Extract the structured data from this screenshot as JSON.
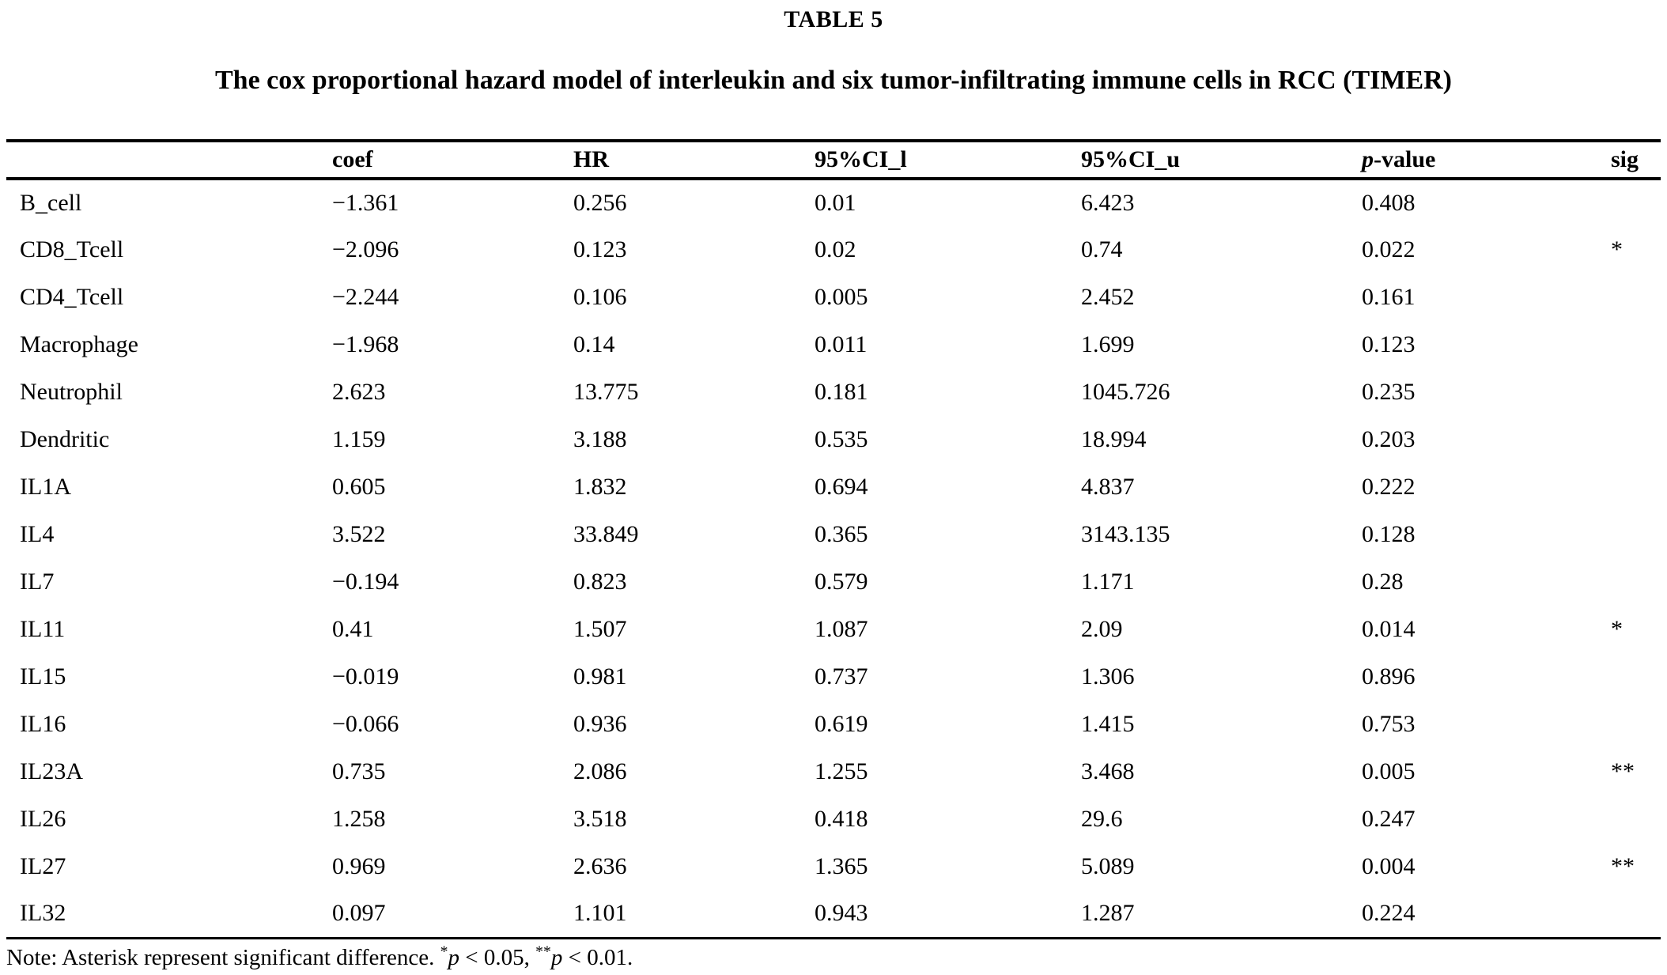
{
  "page": {
    "table_label": "TABLE 5",
    "title": "The cox proportional hazard model of interleukin and six tumor-infiltrating immune cells in RCC (TIMER)"
  },
  "table": {
    "headers": {
      "row_label": "",
      "coef": "coef",
      "hr": "HR",
      "ci_l": "95%CI_l",
      "ci_u": "95%CI_u",
      "p_italic": "p",
      "p_rest": "-value",
      "sig": "sig"
    },
    "rows": [
      {
        "label": "B_cell",
        "coef": "−1.361",
        "hr": "0.256",
        "ci_l": "0.01",
        "ci_u": "6.423",
        "p": "0.408",
        "sig": ""
      },
      {
        "label": "CD8_Tcell",
        "coef": "−2.096",
        "hr": "0.123",
        "ci_l": "0.02",
        "ci_u": "0.74",
        "p": "0.022",
        "sig": "*"
      },
      {
        "label": "CD4_Tcell",
        "coef": "−2.244",
        "hr": "0.106",
        "ci_l": "0.005",
        "ci_u": "2.452",
        "p": "0.161",
        "sig": ""
      },
      {
        "label": "Macrophage",
        "coef": "−1.968",
        "hr": "0.14",
        "ci_l": "0.011",
        "ci_u": "1.699",
        "p": "0.123",
        "sig": ""
      },
      {
        "label": "Neutrophil",
        "coef": "2.623",
        "hr": "13.775",
        "ci_l": "0.181",
        "ci_u": "1045.726",
        "p": "0.235",
        "sig": ""
      },
      {
        "label": "Dendritic",
        "coef": "1.159",
        "hr": "3.188",
        "ci_l": "0.535",
        "ci_u": "18.994",
        "p": "0.203",
        "sig": ""
      },
      {
        "label": "IL1A",
        "coef": "0.605",
        "hr": "1.832",
        "ci_l": "0.694",
        "ci_u": "4.837",
        "p": "0.222",
        "sig": ""
      },
      {
        "label": "IL4",
        "coef": "3.522",
        "hr": "33.849",
        "ci_l": "0.365",
        "ci_u": "3143.135",
        "p": "0.128",
        "sig": ""
      },
      {
        "label": "IL7",
        "coef": "−0.194",
        "hr": "0.823",
        "ci_l": "0.579",
        "ci_u": "1.171",
        "p": "0.28",
        "sig": ""
      },
      {
        "label": "IL11",
        "coef": "0.41",
        "hr": "1.507",
        "ci_l": "1.087",
        "ci_u": "2.09",
        "p": "0.014",
        "sig": "*"
      },
      {
        "label": "IL15",
        "coef": "−0.019",
        "hr": "0.981",
        "ci_l": "0.737",
        "ci_u": "1.306",
        "p": "0.896",
        "sig": ""
      },
      {
        "label": "IL16",
        "coef": "−0.066",
        "hr": "0.936",
        "ci_l": "0.619",
        "ci_u": "1.415",
        "p": "0.753",
        "sig": ""
      },
      {
        "label": "IL23A",
        "coef": "0.735",
        "hr": "2.086",
        "ci_l": "1.255",
        "ci_u": "3.468",
        "p": "0.005",
        "sig": "**"
      },
      {
        "label": "IL26",
        "coef": "1.258",
        "hr": "3.518",
        "ci_l": "0.418",
        "ci_u": "29.6",
        "p": "0.247",
        "sig": ""
      },
      {
        "label": "IL27",
        "coef": "0.969",
        "hr": "2.636",
        "ci_l": "1.365",
        "ci_u": "5.089",
        "p": "0.004",
        "sig": "**"
      },
      {
        "label": "IL32",
        "coef": "0.097",
        "hr": "1.101",
        "ci_l": "0.943",
        "ci_u": "1.287",
        "p": "0.224",
        "sig": ""
      }
    ]
  },
  "note": {
    "prefix": "Note: Asterisk represent significant difference. ",
    "star1": "*",
    "p1": "p",
    "cmp1": " < 0.05, ",
    "star2": "**",
    "p2": "p",
    "cmp2": " < 0.01."
  }
}
